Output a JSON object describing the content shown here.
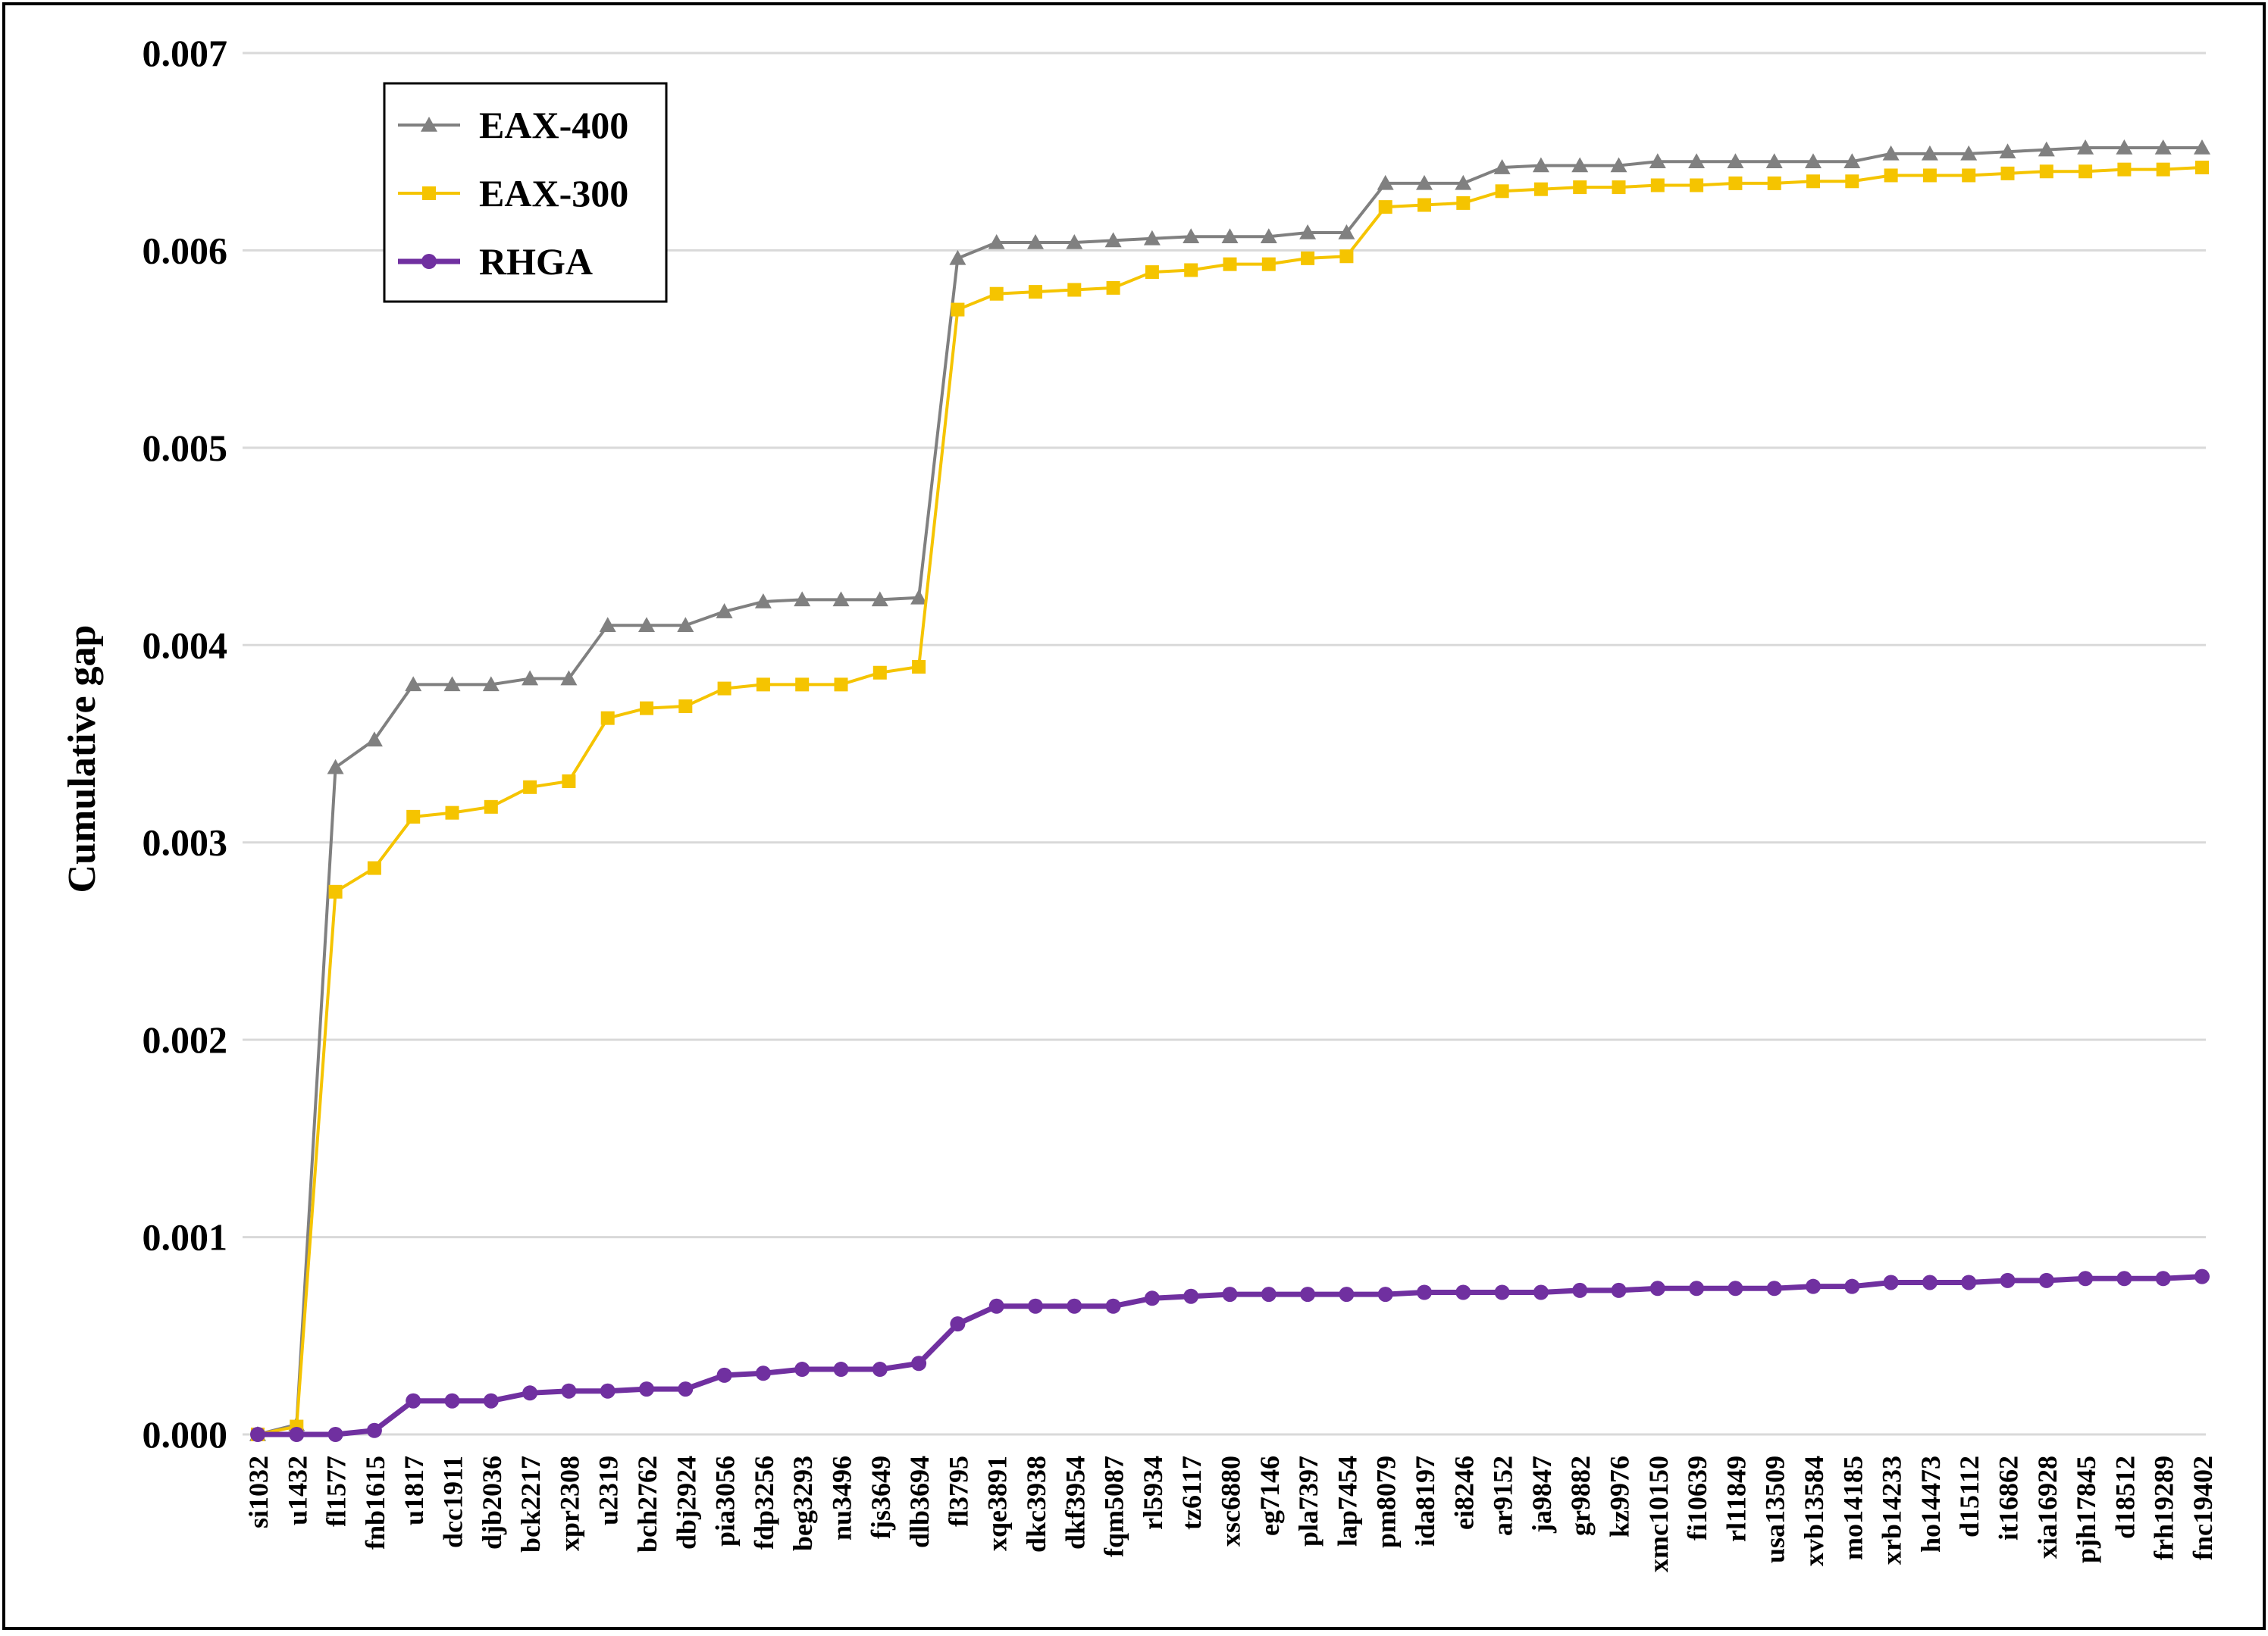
{
  "chart_data": {
    "type": "line",
    "title": "",
    "xlabel": "",
    "ylabel": "Cumulative gap",
    "ylim": [
      0,
      0.007
    ],
    "yticks": [
      "0.000",
      "0.001",
      "0.002",
      "0.003",
      "0.004",
      "0.005",
      "0.006",
      "0.007"
    ],
    "grid": true,
    "legend_position": "top-left",
    "categories": [
      "si1032",
      "u1432",
      "fl1577",
      "fnb1615",
      "u1817",
      "dcc1911",
      "djb2036",
      "bck2217",
      "xpr2308",
      "u2319",
      "bch2762",
      "dbj2924",
      "pia3056",
      "fdp3256",
      "beg3293",
      "nu3496",
      "fjs3649",
      "dlb3694",
      "fl3795",
      "xqe3891",
      "dkc3938",
      "dkf3954",
      "fqm5087",
      "rl5934",
      "tz6117",
      "xsc6880",
      "eg7146",
      "pla7397",
      "lap7454",
      "pm8079",
      "ida8197",
      "ei8246",
      "ar9152",
      "ja9847",
      "gr9882",
      "kz9976",
      "xmc10150",
      "fi10639",
      "rl11849",
      "usa13509",
      "xvb13584",
      "mo14185",
      "xrb14233",
      "ho14473",
      "d15112",
      "it16862",
      "xia16928",
      "pjh17845",
      "d18512",
      "frh19289",
      "fnc19402"
    ],
    "series": [
      {
        "name": "EAX-400",
        "color": "#808080",
        "marker": "triangle",
        "values": [
          0.0,
          5e-05,
          0.00338,
          0.00352,
          0.0038,
          0.0038,
          0.0038,
          0.00383,
          0.00383,
          0.0041,
          0.0041,
          0.0041,
          0.00417,
          0.00422,
          0.00423,
          0.00423,
          0.00423,
          0.00424,
          0.00596,
          0.00604,
          0.00604,
          0.00604,
          0.00605,
          0.00606,
          0.00607,
          0.00607,
          0.00607,
          0.00609,
          0.00609,
          0.00634,
          0.00634,
          0.00634,
          0.00642,
          0.00643,
          0.00643,
          0.00643,
          0.00645,
          0.00645,
          0.00645,
          0.00645,
          0.00645,
          0.00645,
          0.00649,
          0.00649,
          0.00649,
          0.0065,
          0.00651,
          0.00652,
          0.00652,
          0.00652,
          0.00652
        ]
      },
      {
        "name": "EAX-300",
        "color": "#F5C400",
        "marker": "square",
        "values": [
          0.0,
          4e-05,
          0.00275,
          0.00287,
          0.00313,
          0.00315,
          0.00318,
          0.00328,
          0.00331,
          0.00363,
          0.00368,
          0.00369,
          0.00378,
          0.0038,
          0.0038,
          0.0038,
          0.00386,
          0.00389,
          0.0057,
          0.00578,
          0.00579,
          0.0058,
          0.00581,
          0.00589,
          0.0059,
          0.00593,
          0.00593,
          0.00596,
          0.00597,
          0.00622,
          0.00623,
          0.00624,
          0.0063,
          0.00631,
          0.00632,
          0.00632,
          0.00633,
          0.00633,
          0.00634,
          0.00634,
          0.00635,
          0.00635,
          0.00638,
          0.00638,
          0.00638,
          0.00639,
          0.0064,
          0.0064,
          0.00641,
          0.00641,
          0.00642
        ]
      },
      {
        "name": "RHGA",
        "color": "#7030A0",
        "marker": "circle",
        "values": [
          0.0,
          0.0,
          0.0,
          2e-05,
          0.00017,
          0.00017,
          0.00017,
          0.00021,
          0.00022,
          0.00022,
          0.00023,
          0.00023,
          0.0003,
          0.00031,
          0.00033,
          0.00033,
          0.00033,
          0.00036,
          0.00056,
          0.00065,
          0.00065,
          0.00065,
          0.00065,
          0.00069,
          0.0007,
          0.00071,
          0.00071,
          0.00071,
          0.00071,
          0.00071,
          0.00072,
          0.00072,
          0.00072,
          0.00072,
          0.00073,
          0.00073,
          0.00074,
          0.00074,
          0.00074,
          0.00074,
          0.00075,
          0.00075,
          0.00077,
          0.00077,
          0.00077,
          0.00078,
          0.00078,
          0.00079,
          0.00079,
          0.00079,
          0.0008
        ]
      }
    ]
  }
}
